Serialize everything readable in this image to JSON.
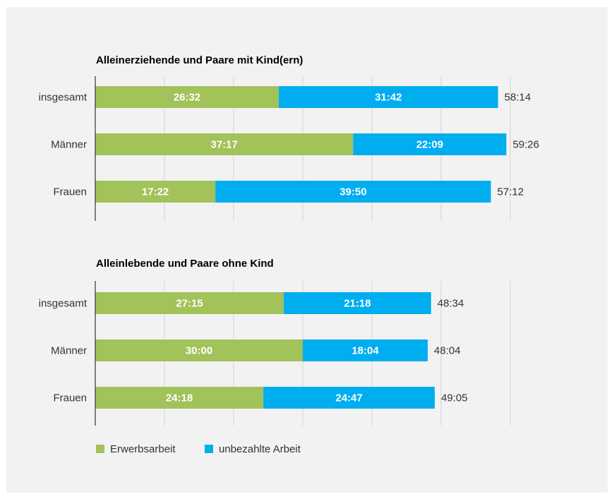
{
  "chart_data": [
    {
      "type": "bar",
      "orientation": "horizontal",
      "stacked": true,
      "title": "Alleinerziehende und Paare mit Kind(ern)",
      "categories": [
        "insgesamt",
        "Männer",
        "Frauen"
      ],
      "series": [
        {
          "name": "Erwerbsarbeit",
          "color": "#a2c25a",
          "values": [
            26.533,
            37.283,
            17.367
          ],
          "labels": [
            "26:32",
            "37:17",
            "17:22"
          ]
        },
        {
          "name": "unbezahlte Arbeit",
          "color": "#00aeef",
          "values": [
            31.7,
            22.15,
            39.833
          ],
          "labels": [
            "31:42",
            "22:09",
            "39:50"
          ]
        }
      ],
      "totals": [
        "58:14",
        "59:26",
        "57:12"
      ],
      "xlim": [
        0,
        65
      ],
      "grid": true
    },
    {
      "type": "bar",
      "orientation": "horizontal",
      "stacked": true,
      "title": "Alleinlebende und Paare ohne Kind",
      "categories": [
        "insgesamt",
        "Männer",
        "Frauen"
      ],
      "series": [
        {
          "name": "Erwerbsarbeit",
          "color": "#a2c25a",
          "values": [
            27.25,
            30.0,
            24.3
          ],
          "labels": [
            "27:15",
            "30:00",
            "24:18"
          ]
        },
        {
          "name": "unbezahlte Arbeit",
          "color": "#00aeef",
          "values": [
            21.3,
            18.067,
            24.783
          ],
          "labels": [
            "21:18",
            "18:04",
            "24:47"
          ]
        }
      ],
      "totals": [
        "48:34",
        "48:04",
        "49:05"
      ],
      "xlim": [
        0,
        65
      ],
      "grid": true
    }
  ],
  "legend": {
    "items": [
      {
        "label": "Erwerbsarbeit",
        "color": "#a2c25a"
      },
      {
        "label": "unbezahlte Arbeit",
        "color": "#00aeef"
      }
    ],
    "position": "bottom-left"
  }
}
